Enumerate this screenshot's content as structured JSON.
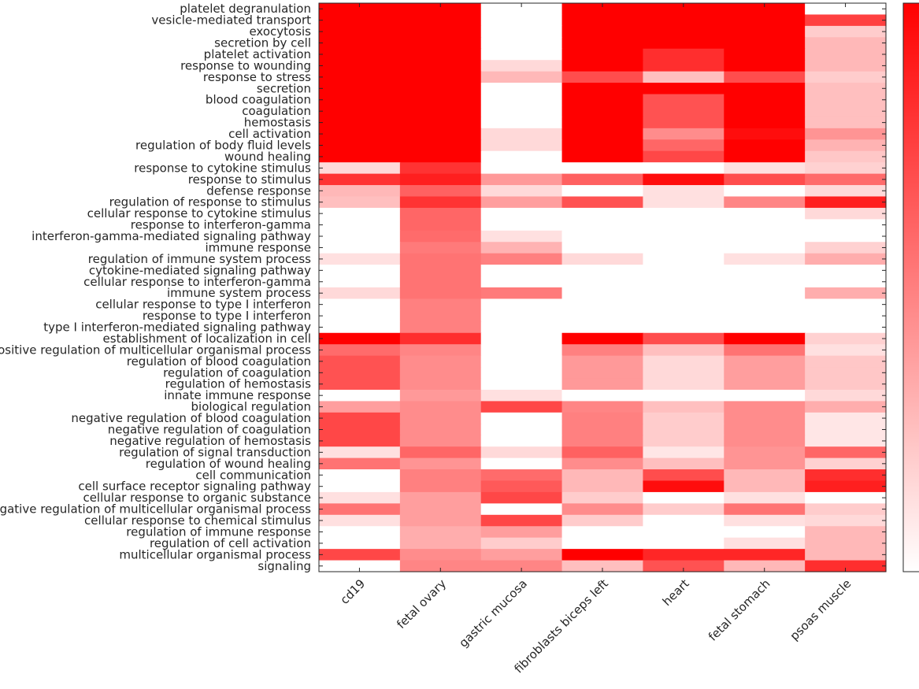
{
  "chart_data": {
    "type": "heatmap",
    "title": "",
    "xlabel": "",
    "ylabel": "",
    "colormap": {
      "low": "#ffffff",
      "high": "#ff0000"
    },
    "value_range": [
      0,
      1
    ],
    "colorbar": true,
    "colorbar_placement": "right",
    "columns": [
      "cd19",
      "fetal ovary",
      "gastric mucosa",
      "fibroblasts biceps left",
      "heart",
      "fetal stomach",
      "psoas muscle"
    ],
    "rows": [
      "platelet degranulation",
      "vesicle-mediated transport",
      "exocytosis",
      "secretion by cell",
      "platelet activation",
      "response to wounding",
      "response to stress",
      "secretion",
      "blood coagulation",
      "coagulation",
      "hemostasis",
      "cell activation",
      "regulation of body fluid levels",
      "wound healing",
      "response to cytokine stimulus",
      "response to stimulus",
      "defense response",
      "regulation of response to stimulus",
      "cellular response to cytokine stimulus",
      "response to interferon-gamma",
      "interferon-gamma-mediated signaling pathway",
      "immune response",
      "regulation of immune system process",
      "cytokine-mediated signaling pathway",
      "cellular response to interferon-gamma",
      "immune system process",
      "cellular response to type I interferon",
      "response to type I interferon",
      "type I interferon-mediated signaling pathway",
      "establishment of localization in cell",
      "positive regulation of multicellular organismal process",
      "regulation of blood coagulation",
      "regulation of coagulation",
      "regulation of hemostasis",
      "innate immune response",
      "biological regulation",
      "negative regulation of blood coagulation",
      "negative regulation of coagulation",
      "negative regulation of hemostasis",
      "regulation of signal transduction",
      "regulation of wound healing",
      "cell communication",
      "cell surface receptor signaling pathway",
      "cellular response to organic substance",
      "negative regulation of multicellular organismal process",
      "cellular response to chemical stimulus",
      "regulation of immune response",
      "regulation of cell activation",
      "multicellular organismal process",
      "signaling"
    ],
    "values": [
      [
        1,
        1,
        0,
        1,
        1,
        1,
        0
      ],
      [
        1,
        1,
        0,
        1,
        1,
        1,
        0.75
      ],
      [
        1,
        1,
        0,
        1,
        1,
        1,
        0.2
      ],
      [
        1,
        1,
        0,
        1,
        1,
        1,
        0.28
      ],
      [
        1,
        1,
        0,
        1,
        0.82,
        1,
        0.28
      ],
      [
        1,
        1,
        0.15,
        1,
        0.82,
        1,
        0.28
      ],
      [
        1,
        1,
        0.28,
        0.7,
        0.25,
        0.7,
        0.2
      ],
      [
        1,
        1,
        0,
        1,
        1,
        1,
        0.25
      ],
      [
        1,
        1,
        0,
        1,
        0.68,
        1,
        0.25
      ],
      [
        1,
        1,
        0,
        1,
        0.68,
        1,
        0.25
      ],
      [
        1,
        1,
        0,
        1,
        0.68,
        1,
        0.25
      ],
      [
        1,
        1,
        0.15,
        1,
        0.45,
        0.95,
        0.42
      ],
      [
        1,
        1,
        0.15,
        1,
        0.6,
        1,
        0.3
      ],
      [
        1,
        1,
        0,
        1,
        0.72,
        1,
        0.22
      ],
      [
        0.15,
        0.8,
        0,
        0,
        0,
        0.12,
        0.18
      ],
      [
        0.8,
        0.88,
        0.4,
        0.62,
        0.95,
        0.7,
        0.58
      ],
      [
        0.28,
        0.62,
        0.15,
        0,
        0.12,
        0,
        0.15
      ],
      [
        0.25,
        0.8,
        0.38,
        0.68,
        0.12,
        0.48,
        0.88
      ],
      [
        0,
        0.6,
        0,
        0,
        0,
        0,
        0.15
      ],
      [
        0,
        0.6,
        0,
        0,
        0,
        0,
        0
      ],
      [
        0,
        0.58,
        0.12,
        0,
        0,
        0,
        0
      ],
      [
        0,
        0.52,
        0.3,
        0,
        0,
        0,
        0.18
      ],
      [
        0.12,
        0.55,
        0.5,
        0.15,
        0,
        0.12,
        0.32
      ],
      [
        0,
        0.55,
        0,
        0,
        0,
        0,
        0
      ],
      [
        0,
        0.55,
        0,
        0,
        0,
        0,
        0
      ],
      [
        0.15,
        0.55,
        0.52,
        0,
        0,
        0,
        0.32
      ],
      [
        0,
        0.5,
        0,
        0,
        0,
        0,
        0
      ],
      [
        0,
        0.5,
        0,
        0,
        0,
        0,
        0
      ],
      [
        0,
        0.5,
        0,
        0,
        0,
        0,
        0
      ],
      [
        1,
        0.82,
        0,
        1,
        0.7,
        1,
        0.18
      ],
      [
        0.58,
        0.48,
        0,
        0.5,
        0.25,
        0.55,
        0.12
      ],
      [
        0.68,
        0.45,
        0,
        0.4,
        0.15,
        0.38,
        0.22
      ],
      [
        0.68,
        0.45,
        0,
        0.4,
        0.15,
        0.38,
        0.22
      ],
      [
        0.68,
        0.45,
        0,
        0.4,
        0.15,
        0.38,
        0.22
      ],
      [
        0,
        0.4,
        0.12,
        0,
        0,
        0,
        0.15
      ],
      [
        0.38,
        0.45,
        0.72,
        0.48,
        0.25,
        0.45,
        0.32
      ],
      [
        0.72,
        0.45,
        0,
        0.5,
        0.2,
        0.45,
        0.1
      ],
      [
        0.72,
        0.45,
        0,
        0.5,
        0.2,
        0.45,
        0.1
      ],
      [
        0.72,
        0.45,
        0,
        0.5,
        0.2,
        0.45,
        0.1
      ],
      [
        0.12,
        0.6,
        0.15,
        0.62,
        0.1,
        0.42,
        0.6
      ],
      [
        0.55,
        0.42,
        0,
        0.45,
        0.25,
        0.42,
        0.18
      ],
      [
        0,
        0.5,
        0.58,
        0.28,
        0.7,
        0.28,
        0.82
      ],
      [
        0,
        0.5,
        0.65,
        0.28,
        0.95,
        0.28,
        0.88
      ],
      [
        0.12,
        0.38,
        0.72,
        0.2,
        0,
        0.12,
        0
      ],
      [
        0.55,
        0.38,
        0,
        0.45,
        0.2,
        0.55,
        0.2
      ],
      [
        0.12,
        0.38,
        0.72,
        0.2,
        0,
        0.12,
        0.15
      ],
      [
        0,
        0.32,
        0.38,
        0,
        0,
        0,
        0.28
      ],
      [
        0,
        0.32,
        0.2,
        0,
        0,
        0.12,
        0.28
      ],
      [
        0.72,
        0.45,
        0.38,
        1,
        0.85,
        0.85,
        0.28
      ],
      [
        0,
        0.48,
        0.48,
        0.25,
        0.68,
        0.28,
        0.82
      ]
    ]
  }
}
